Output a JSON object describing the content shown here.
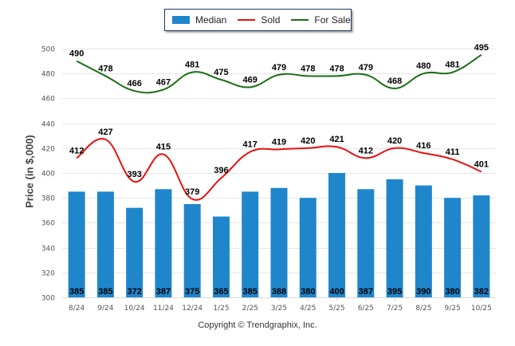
{
  "chart_data": {
    "type": "bar",
    "title": "",
    "xlabel": "",
    "ylabel": "Price (in $,000)",
    "ylim": [
      300,
      500
    ],
    "yticks": [
      300,
      320,
      340,
      360,
      380,
      400,
      420,
      440,
      460,
      480,
      500
    ],
    "grid": true,
    "legend_position": "top-center",
    "categories": [
      "8/24",
      "9/24",
      "10/24",
      "11/24",
      "12/24",
      "1/25",
      "2/25",
      "3/25",
      "4/25",
      "5/25",
      "6/25",
      "7/25",
      "8/25",
      "9/25",
      "10/25"
    ],
    "series": [
      {
        "name": "Median",
        "type": "bar",
        "color": "#1f86cc",
        "values": [
          385,
          385,
          372,
          387,
          375,
          365,
          385,
          388,
          380,
          400,
          387,
          395,
          390,
          380,
          382
        ]
      },
      {
        "name": "Sold",
        "type": "line",
        "color": "#e8100e",
        "values": [
          412,
          427,
          393,
          415,
          379,
          396,
          417,
          419,
          420,
          421,
          412,
          420,
          416,
          411,
          401
        ]
      },
      {
        "name": "For Sale",
        "type": "line",
        "color": "#1a6e13",
        "values": [
          490,
          478,
          466,
          467,
          481,
          475,
          469,
          479,
          478,
          478,
          479,
          468,
          480,
          481,
          495
        ]
      }
    ],
    "footer": "Copyright © Trendgraphix, Inc."
  }
}
